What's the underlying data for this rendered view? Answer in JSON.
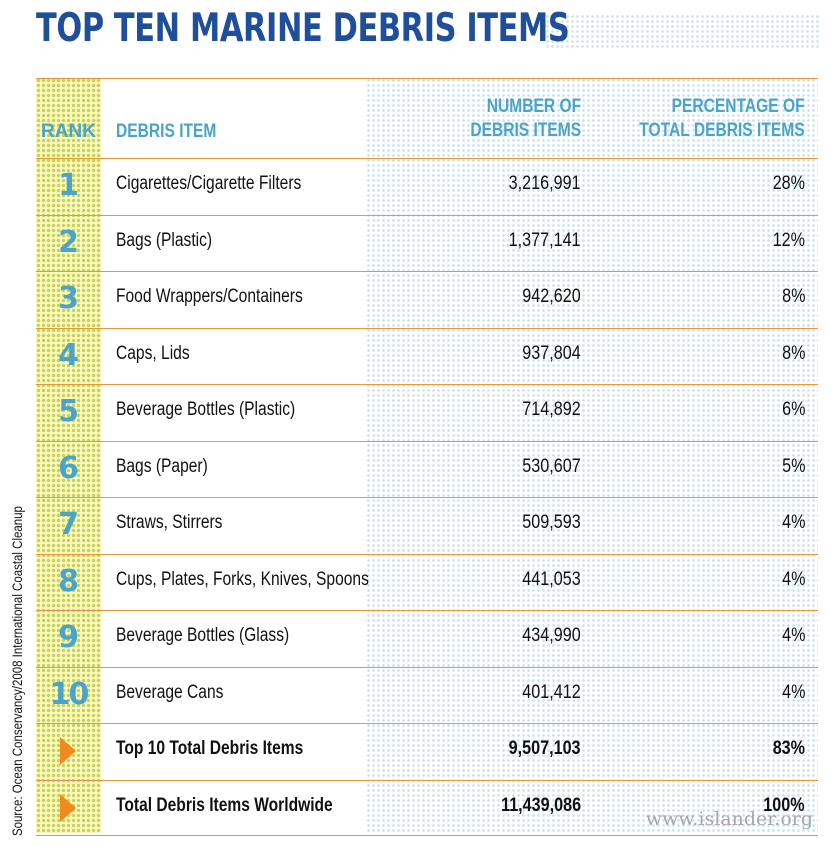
{
  "title": "TOP TEN MARINE DEBRIS ITEMS",
  "source": "Source: Ocean Conservancy/2008 International Coastal Cleanup",
  "watermark": "www.islander.org",
  "colors": {
    "title": "#1f4e9a",
    "header": "#4aa3c8",
    "rank": "#4aa3c8",
    "rule": "#e59a3a",
    "arrow": "#f08a1e",
    "rank_column": "#fbf6c8"
  },
  "chart_data": {
    "type": "table",
    "title": "TOP TEN MARINE DEBRIS ITEMS",
    "headers": {
      "rank": "RANK",
      "item": "DEBRIS ITEM",
      "count": [
        "NUMBER OF",
        "DEBRIS ITEMS"
      ],
      "percent": [
        "PERCENTAGE OF",
        "TOTAL DEBRIS ITEMS"
      ]
    },
    "rows": [
      {
        "rank": "1",
        "item": "Cigarettes/Cigarette Filters",
        "count": "3,216,991",
        "percent": "28%"
      },
      {
        "rank": "2",
        "item": "Bags (Plastic)",
        "count": "1,377,141",
        "percent": "12%"
      },
      {
        "rank": "3",
        "item": "Food Wrappers/Containers",
        "count": "942,620",
        "percent": "8%"
      },
      {
        "rank": "4",
        "item": "Caps, Lids",
        "count": "937,804",
        "percent": "8%"
      },
      {
        "rank": "5",
        "item": "Beverage Bottles (Plastic)",
        "count": "714,892",
        "percent": "6%"
      },
      {
        "rank": "6",
        "item": "Bags (Paper)",
        "count": "530,607",
        "percent": "5%"
      },
      {
        "rank": "7",
        "item": "Straws, Stirrers",
        "count": "509,593",
        "percent": "4%"
      },
      {
        "rank": "8",
        "item": "Cups, Plates, Forks, Knives, Spoons",
        "count": "441,053",
        "percent": "4%"
      },
      {
        "rank": "9",
        "item": "Beverage Bottles (Glass)",
        "count": "434,990",
        "percent": "4%"
      },
      {
        "rank": "10",
        "item": "Beverage Cans",
        "count": "401,412",
        "percent": "4%"
      }
    ],
    "totals": [
      {
        "item": "Top 10 Total Debris Items",
        "count": "9,507,103",
        "percent": "83%",
        "marker": "arrow-icon"
      },
      {
        "item": "Total Debris Items Worldwide",
        "count": "11,439,086",
        "percent": "100%",
        "marker": "arrow-icon"
      }
    ]
  }
}
